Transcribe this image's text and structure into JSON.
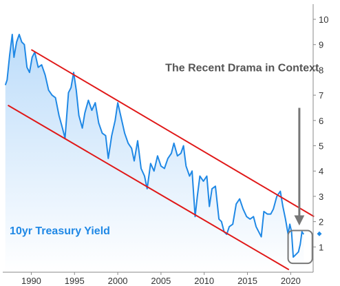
{
  "chart_data": {
    "type": "area",
    "title": "",
    "xlabel": "",
    "ylabel": "",
    "xlim": [
      1986.7,
      2022.6
    ],
    "ylim": [
      0,
      10.6
    ],
    "x_ticks": [
      1990,
      1995,
      2000,
      2005,
      2010,
      2015,
      2020
    ],
    "y_ticks": [
      1,
      2,
      3,
      4,
      5,
      6,
      7,
      8,
      9,
      10
    ],
    "y_axis_side": "right",
    "grid": false,
    "legend": "none",
    "colors": {
      "line": "#1f88e5",
      "fill_top": "#bcdcfa",
      "fill_bottom": "#ffffff",
      "channel": "#e01818",
      "arrow": "#777777",
      "box": "#777777",
      "annotation_dark": "#555555",
      "annotation_blue": "#1f88e5",
      "axis": "#888888"
    },
    "series": [
      {
        "name": "10yr Treasury Yield",
        "x": [
          1987.0,
          1987.2,
          1987.5,
          1987.8,
          1988.0,
          1988.3,
          1988.6,
          1988.9,
          1989.2,
          1989.5,
          1989.8,
          1990.1,
          1990.4,
          1990.8,
          1991.2,
          1991.6,
          1992.0,
          1992.4,
          1992.8,
          1993.2,
          1993.6,
          1993.9,
          1994.3,
          1994.6,
          1994.9,
          1995.2,
          1995.5,
          1995.9,
          1996.2,
          1996.6,
          1997.0,
          1997.4,
          1997.8,
          1998.2,
          1998.6,
          1998.9,
          1999.3,
          1999.7,
          2000.0,
          2000.4,
          2000.8,
          2001.2,
          2001.6,
          2001.9,
          2002.3,
          2002.7,
          2003.1,
          2003.4,
          2003.8,
          2004.2,
          2004.6,
          2005.0,
          2005.4,
          2005.8,
          2006.2,
          2006.5,
          2006.9,
          2007.3,
          2007.6,
          2007.9,
          2008.3,
          2008.6,
          2008.95,
          2009.2,
          2009.5,
          2009.9,
          2010.3,
          2010.6,
          2010.9,
          2011.3,
          2011.7,
          2012.0,
          2012.3,
          2012.6,
          2012.9,
          2013.3,
          2013.7,
          2014.1,
          2014.5,
          2014.9,
          2015.3,
          2015.7,
          2016.0,
          2016.3,
          2016.6,
          2016.9,
          2017.3,
          2017.7,
          2018.0,
          2018.4,
          2018.8,
          2019.1,
          2019.4,
          2019.7,
          2019.9,
          2020.1,
          2020.3,
          2020.6,
          2020.9,
          2021.1,
          2021.3,
          2021.5
        ],
        "values": [
          7.4,
          7.6,
          8.6,
          9.4,
          8.5,
          9.1,
          9.4,
          9.1,
          9.0,
          8.1,
          7.9,
          8.5,
          8.7,
          8.1,
          8.2,
          7.8,
          7.2,
          7.0,
          6.9,
          6.2,
          5.7,
          5.3,
          7.1,
          7.3,
          7.9,
          7.2,
          6.2,
          5.7,
          6.3,
          6.8,
          6.4,
          6.7,
          5.9,
          5.5,
          5.4,
          4.5,
          5.4,
          6.0,
          6.7,
          6.1,
          5.5,
          5.1,
          4.9,
          4.4,
          5.2,
          4.1,
          3.8,
          3.3,
          4.3,
          4.0,
          4.6,
          4.2,
          4.1,
          4.5,
          4.7,
          5.1,
          4.6,
          4.7,
          5.0,
          4.2,
          3.8,
          4.0,
          2.2,
          3.0,
          3.8,
          3.6,
          3.8,
          2.6,
          3.3,
          3.4,
          2.1,
          2.0,
          1.6,
          1.5,
          1.8,
          1.9,
          2.7,
          2.9,
          2.5,
          2.2,
          2.1,
          2.2,
          1.8,
          1.6,
          1.4,
          2.4,
          2.3,
          2.3,
          2.5,
          3.0,
          3.2,
          2.6,
          2.1,
          1.5,
          1.9,
          1.6,
          0.6,
          0.7,
          0.8,
          1.1,
          1.6,
          1.5
        ]
      }
    ],
    "channel_lines": [
      {
        "x": [
          1990.0,
          2022.7
        ],
        "y": [
          8.8,
          2.2
        ]
      },
      {
        "x": [
          1987.3,
          2019.8
        ],
        "y": [
          6.6,
          0.1
        ]
      }
    ],
    "arrow": {
      "from": [
        2021.0,
        6.5
      ],
      "to": [
        2021.0,
        2.05
      ]
    },
    "highlight_box": {
      "x": [
        2019.7,
        2022.5
      ],
      "y": [
        0.35,
        1.65
      ]
    },
    "annotations": [
      {
        "text": "The Recent Drama in Context",
        "x": 2005.5,
        "y": 7.95,
        "color": "annotation_dark"
      },
      {
        "text": "10yr Treasury Yield",
        "x": 1987.5,
        "y": 1.5,
        "color": "annotation_blue"
      }
    ],
    "right_marker": {
      "y": 1.52,
      "color": "line"
    }
  }
}
